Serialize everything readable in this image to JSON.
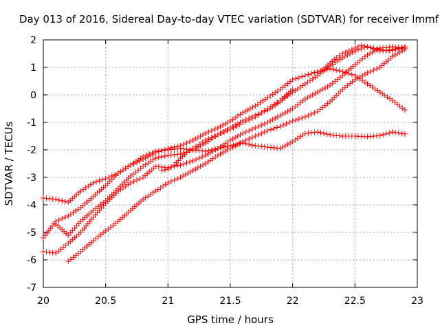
{
  "chart_data": {
    "type": "scatter",
    "title": "Day 013 of 2016, Sidereal Day-to-day VTEC variation (SDTVAR) for receiver lmmf",
    "xlabel": "GPS time / hours",
    "ylabel": "SDTVAR / TECUs",
    "xlim": [
      20,
      23
    ],
    "ylim": [
      -7,
      2
    ],
    "x_ticks": [
      "20",
      "20.5",
      "21",
      "21.5",
      "22",
      "22.5",
      "23"
    ],
    "y_ticks": [
      "-7",
      "-6",
      "-5",
      "-4",
      "-3",
      "-2",
      "-1",
      "0",
      "1",
      "2"
    ],
    "grid": true,
    "marker": "+",
    "color": "#ff0000",
    "series": [
      {
        "x": [
          20.0,
          20.1,
          20.2,
          20.3,
          20.4,
          20.5,
          20.6,
          20.7,
          20.8,
          20.9,
          21.0,
          21.1,
          21.2,
          21.3,
          21.4,
          21.5,
          21.6,
          21.7,
          21.8,
          21.9,
          22.0,
          22.1,
          22.2,
          22.3,
          22.4,
          22.5,
          22.6,
          22.7,
          22.8,
          22.9
        ],
        "y": [
          -3.75,
          -3.8,
          -3.9,
          -3.5,
          -3.2,
          -3.05,
          -2.85,
          -2.55,
          -2.35,
          -2.1,
          -1.95,
          -1.85,
          -1.65,
          -1.4,
          -1.2,
          -0.95,
          -0.65,
          -0.4,
          -0.1,
          0.2,
          0.55,
          0.7,
          0.85,
          0.95,
          0.85,
          0.7,
          0.4,
          0.1,
          -0.2,
          -0.55
        ]
      },
      {
        "x": [
          20.0,
          20.1,
          20.2,
          20.3,
          20.4,
          20.5,
          20.6,
          20.7,
          20.8,
          20.9,
          21.0,
          21.1,
          21.2,
          21.3,
          21.4,
          21.5,
          21.6,
          21.7,
          21.8,
          21.9,
          22.0,
          22.1,
          22.2,
          22.3,
          22.4,
          22.5,
          22.6,
          22.7,
          22.8,
          22.9
        ],
        "y": [
          -5.2,
          -4.6,
          -4.4,
          -4.1,
          -3.7,
          -3.3,
          -2.85,
          -2.55,
          -2.25,
          -2.05,
          -2.0,
          -1.95,
          -2.0,
          -2.05,
          -1.95,
          -1.85,
          -1.75,
          -1.85,
          -1.9,
          -1.95,
          -1.7,
          -1.4,
          -1.35,
          -1.45,
          -1.5,
          -1.5,
          -1.52,
          -1.48,
          -1.35,
          -1.42
        ]
      },
      {
        "x": [
          20.1,
          20.2,
          20.3,
          20.4,
          20.5,
          20.6,
          20.7,
          20.8,
          20.9,
          21.0,
          21.1,
          21.2,
          21.3,
          21.4,
          21.5,
          21.6,
          21.7,
          21.8,
          21.9,
          22.0,
          22.1,
          22.2,
          22.3,
          22.4,
          22.5,
          22.6,
          22.7,
          22.8,
          22.9
        ],
        "y": [
          -4.7,
          -5.1,
          -4.6,
          -4.2,
          -3.85,
          -3.4,
          -2.95,
          -2.6,
          -2.3,
          -2.2,
          -2.15,
          -2.0,
          -1.75,
          -1.45,
          -1.2,
          -0.95,
          -0.75,
          -0.55,
          -0.25,
          0.1,
          0.4,
          0.7,
          1.05,
          1.35,
          1.6,
          1.75,
          1.6,
          1.65,
          1.75
        ]
      },
      {
        "x": [
          20.0,
          20.1,
          20.2,
          20.3,
          20.4,
          20.5,
          20.6,
          20.7,
          20.8,
          20.9,
          21.0,
          21.1,
          21.2,
          21.3,
          21.4,
          21.5,
          21.6,
          21.7,
          21.8,
          21.9,
          22.0,
          22.1,
          22.2,
          22.3,
          22.4,
          22.5,
          22.6,
          22.7,
          22.8,
          22.9
        ],
        "y": [
          -5.7,
          -5.75,
          -5.4,
          -5.0,
          -4.45,
          -3.95,
          -3.5,
          -3.2,
          -3.0,
          -2.6,
          -2.65,
          -2.55,
          -2.4,
          -2.2,
          -1.95,
          -1.65,
          -1.4,
          -1.2,
          -1.0,
          -0.75,
          -0.5,
          -0.15,
          0.1,
          0.35,
          0.7,
          1.1,
          1.45,
          1.7,
          1.75,
          1.7
        ]
      },
      {
        "x": [
          20.2,
          20.3,
          20.4,
          20.5,
          20.6,
          20.7,
          20.8,
          20.9,
          21.0,
          21.1,
          21.2,
          21.3,
          21.4,
          21.5,
          21.6,
          21.7,
          21.8,
          21.9,
          22.0,
          22.1,
          22.2,
          22.3,
          22.4,
          22.5,
          22.6,
          22.7,
          22.8,
          22.9
        ],
        "y": [
          -6.05,
          -5.7,
          -5.3,
          -4.95,
          -4.6,
          -4.2,
          -3.8,
          -3.5,
          -3.2,
          -3.0,
          -2.75,
          -2.5,
          -2.2,
          -1.95,
          -1.7,
          -1.5,
          -1.3,
          -1.15,
          -0.95,
          -0.8,
          -0.6,
          -0.25,
          0.2,
          0.55,
          0.8,
          1.0,
          1.4,
          1.65
        ]
      },
      {
        "x": [
          20.95,
          21.0,
          21.05,
          21.1,
          21.15,
          21.2,
          21.25,
          21.3,
          21.35,
          21.4,
          21.45,
          21.5,
          21.55,
          21.6,
          21.65,
          21.7,
          21.75,
          21.8,
          21.85,
          21.9,
          21.95,
          22.0
        ],
        "y": [
          -2.75,
          -2.7,
          -2.55,
          -2.3,
          -2.1,
          -1.95,
          -1.8,
          -1.65,
          -1.55,
          -1.45,
          -1.35,
          -1.25,
          -1.15,
          -1.0,
          -0.9,
          -0.8,
          -0.65,
          -0.5,
          -0.35,
          -0.2,
          0.0,
          0.2
        ]
      },
      {
        "x": [
          22.2,
          22.25,
          22.3,
          22.35,
          22.4,
          22.45,
          22.5,
          22.55,
          22.6,
          22.65,
          22.7,
          22.75,
          22.8,
          22.85,
          22.9
        ],
        "y": [
          0.8,
          0.95,
          1.15,
          1.35,
          1.5,
          1.6,
          1.7,
          1.8,
          1.75,
          1.7,
          1.65,
          1.6,
          1.62,
          1.68,
          1.7
        ]
      }
    ]
  }
}
